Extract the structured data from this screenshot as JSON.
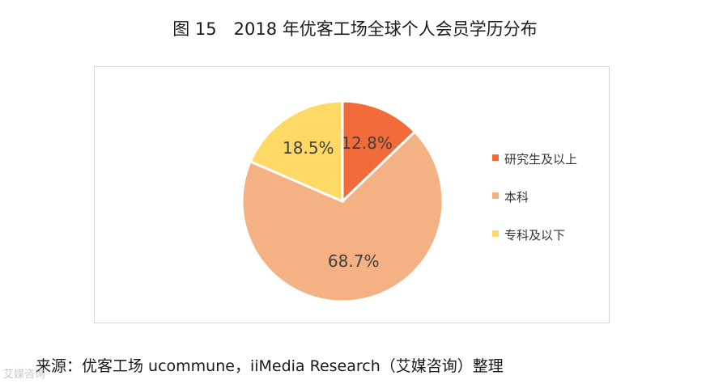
{
  "title": "图 15　2018 年优客工场全球个人会员学历分布",
  "chart_data": {
    "type": "pie",
    "title": "图 15　2018 年优客工场全球个人会员学历分布",
    "categories": [
      "研究生及以上",
      "本科",
      "专科及以下"
    ],
    "values": [
      12.8,
      68.7,
      18.5
    ],
    "labels": [
      "12.8%",
      "68.7%",
      "18.5%"
    ],
    "colors": [
      "#F26B3A",
      "#F4B183",
      "#FFD966"
    ],
    "legend_position": "right",
    "start_angle": "top",
    "direction": "clockwise"
  },
  "source": "来源：优客工场 ucommune，iiMedia Research（艾媒咨询）整理",
  "watermark": "艾媒咨询"
}
